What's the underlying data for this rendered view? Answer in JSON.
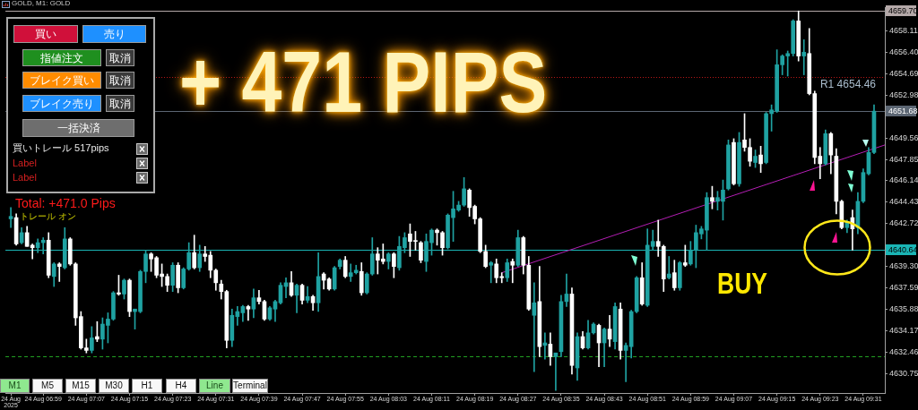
{
  "chart_data": [
    {
      "type": "candlestick",
      "title": "GOLD, M1: GOLD",
      "x": [
        "2025-08-24T06:53",
        "2025-08-24T06:54",
        "2025-08-24T06:55",
        "2025-08-24T06:56",
        "2025-08-24T06:57",
        "2025-08-24T06:58",
        "2025-08-24T06:59",
        "2025-08-24T07:00",
        "2025-08-24T07:01",
        "2025-08-24T07:02",
        "2025-08-24T07:03",
        "2025-08-24T07:04",
        "2025-08-24T07:05",
        "2025-08-24T07:06",
        "2025-08-24T07:07",
        "2025-08-24T07:08",
        "2025-08-24T07:09",
        "2025-08-24T07:10",
        "2025-08-24T07:11",
        "2025-08-24T07:12",
        "2025-08-24T07:13",
        "2025-08-24T07:14",
        "2025-08-24T07:15",
        "2025-08-24T07:16",
        "2025-08-24T07:17",
        "2025-08-24T07:18",
        "2025-08-24T07:19",
        "2025-08-24T07:20",
        "2025-08-24T07:21",
        "2025-08-24T07:22",
        "2025-08-24T07:23",
        "2025-08-24T07:24",
        "2025-08-24T07:25",
        "2025-08-24T07:26",
        "2025-08-24T07:27",
        "2025-08-24T07:28",
        "2025-08-24T07:29",
        "2025-08-24T07:30",
        "2025-08-24T07:31",
        "2025-08-24T07:32",
        "2025-08-24T07:33",
        "2025-08-24T07:34",
        "2025-08-24T07:35",
        "2025-08-24T07:36",
        "2025-08-24T07:37",
        "2025-08-24T07:38",
        "2025-08-24T07:39",
        "2025-08-24T07:40",
        "2025-08-24T07:41",
        "2025-08-24T07:42",
        "2025-08-24T07:43",
        "2025-08-24T07:44",
        "2025-08-24T07:45",
        "2025-08-24T07:46",
        "2025-08-24T07:47",
        "2025-08-24T07:48",
        "2025-08-24T07:49",
        "2025-08-24T07:50",
        "2025-08-24T07:51",
        "2025-08-24T07:52",
        "2025-08-24T07:53",
        "2025-08-24T07:54",
        "2025-08-24T07:55",
        "2025-08-24T07:56",
        "2025-08-24T07:57",
        "2025-08-24T07:58",
        "2025-08-24T07:59",
        "2025-08-24T08:00",
        "2025-08-24T08:01",
        "2025-08-24T08:02",
        "2025-08-24T08:03",
        "2025-08-24T08:04",
        "2025-08-24T08:05",
        "2025-08-24T08:06",
        "2025-08-24T08:07",
        "2025-08-24T08:08",
        "2025-08-24T08:09",
        "2025-08-24T08:10",
        "2025-08-24T08:11",
        "2025-08-24T08:12",
        "2025-08-24T08:13",
        "2025-08-24T08:14",
        "2025-08-24T08:15",
        "2025-08-24T08:16",
        "2025-08-24T08:17",
        "2025-08-24T08:18",
        "2025-08-24T08:19",
        "2025-08-24T08:20",
        "2025-08-24T08:21",
        "2025-08-24T08:22",
        "2025-08-24T08:23",
        "2025-08-24T08:24",
        "2025-08-24T08:25",
        "2025-08-24T08:26",
        "2025-08-24T08:27",
        "2025-08-24T08:28",
        "2025-08-24T08:29",
        "2025-08-24T08:30",
        "2025-08-24T08:31",
        "2025-08-24T08:32",
        "2025-08-24T08:33",
        "2025-08-24T08:34",
        "2025-08-24T08:35",
        "2025-08-24T08:36",
        "2025-08-24T08:37",
        "2025-08-24T08:38",
        "2025-08-24T08:39",
        "2025-08-24T08:40",
        "2025-08-24T08:41",
        "2025-08-24T08:42",
        "2025-08-24T08:43",
        "2025-08-24T08:44",
        "2025-08-24T08:45",
        "2025-08-24T08:46",
        "2025-08-24T08:47",
        "2025-08-24T08:48",
        "2025-08-24T08:49",
        "2025-08-24T08:50",
        "2025-08-24T08:51",
        "2025-08-24T08:52",
        "2025-08-24T08:53",
        "2025-08-24T08:54",
        "2025-08-24T08:55",
        "2025-08-24T08:56",
        "2025-08-24T08:57",
        "2025-08-24T08:58",
        "2025-08-24T08:59",
        "2025-08-24T09:00",
        "2025-08-24T09:01",
        "2025-08-24T09:02",
        "2025-08-24T09:03",
        "2025-08-24T09:04",
        "2025-08-24T09:05",
        "2025-08-24T09:06",
        "2025-08-24T09:07",
        "2025-08-24T09:08",
        "2025-08-24T09:09",
        "2025-08-24T09:10",
        "2025-08-24T09:11",
        "2025-08-24T09:12",
        "2025-08-24T09:13",
        "2025-08-24T09:14",
        "2025-08-24T09:15",
        "2025-08-24T09:16",
        "2025-08-24T09:17",
        "2025-08-24T09:18",
        "2025-08-24T09:19",
        "2025-08-24T09:20",
        "2025-08-24T09:21",
        "2025-08-24T09:22",
        "2025-08-24T09:23",
        "2025-08-24T09:24",
        "2025-08-24T09:25",
        "2025-08-24T09:26",
        "2025-08-24T09:27",
        "2025-08-24T09:28",
        "2025-08-24T09:29",
        "2025-08-24T09:30",
        "2025-08-24T09:31",
        "2025-08-24T09:32",
        "2025-08-24T09:33"
      ],
      "ohlc": [
        [
          4643.1,
          4644.0,
          4642.4,
          4643.3
        ],
        [
          4643.2,
          4643.5,
          4641.0,
          4641.1
        ],
        [
          4641.2,
          4642.4,
          4641.1,
          4642.0
        ],
        [
          4642.0,
          4642.5,
          4640.9,
          4640.9
        ],
        [
          4641.0,
          4641.1,
          4639.9,
          4640.8
        ],
        [
          4640.8,
          4641.5,
          4640.4,
          4641.2
        ],
        [
          4641.2,
          4641.6,
          4640.3,
          4641.4
        ],
        [
          4641.4,
          4642.0,
          4638.4,
          4638.6
        ],
        [
          4638.5,
          4639.6,
          4637.7,
          4639.5
        ],
        [
          4639.5,
          4639.6,
          4638.1,
          4639.3
        ],
        [
          4639.2,
          4642.4,
          4639.1,
          4641.5
        ],
        [
          4641.5,
          4641.6,
          4639.4,
          4639.5
        ],
        [
          4639.5,
          4639.6,
          4634.6,
          4635.2
        ],
        [
          4635.3,
          4635.7,
          4632.7,
          4632.8
        ],
        [
          4632.8,
          4633.5,
          4632.4,
          4632.6
        ],
        [
          4632.6,
          4634.5,
          4632.4,
          4633.6
        ],
        [
          4633.7,
          4634.9,
          4633.3,
          4633.5
        ],
        [
          4633.5,
          4635.2,
          4632.7,
          4634.7
        ],
        [
          4634.6,
          4635.6,
          4633.2,
          4635.1
        ],
        [
          4635.1,
          4637.3,
          4635.0,
          4637.2
        ],
        [
          4637.2,
          4638.6,
          4637.0,
          4637.1
        ],
        [
          4637.1,
          4638.3,
          4636.7,
          4638.2
        ],
        [
          4638.2,
          4638.3,
          4635.3,
          4635.7
        ],
        [
          4635.7,
          4635.9,
          4634.3,
          4635.9
        ],
        [
          4635.7,
          4639.0,
          4635.6,
          4638.9
        ],
        [
          4638.9,
          4640.6,
          4638.0,
          4640.3
        ],
        [
          4640.3,
          4640.4,
          4638.9,
          4639.9
        ],
        [
          4640.0,
          4640.1,
          4638.4,
          4638.6
        ],
        [
          4638.7,
          4639.5,
          4637.7,
          4638.5
        ],
        [
          4638.5,
          4638.7,
          4637.3,
          4637.8
        ],
        [
          4637.8,
          4639.6,
          4637.3,
          4639.4
        ],
        [
          4639.4,
          4639.6,
          4637.2,
          4637.6
        ],
        [
          4637.6,
          4639.2,
          4637.5,
          4639.1
        ],
        [
          4639.1,
          4641.2,
          4639.0,
          4640.4
        ],
        [
          4640.4,
          4641.8,
          4639.1,
          4639.2
        ],
        [
          4639.2,
          4641.0,
          4638.9,
          4640.3
        ],
        [
          4640.3,
          4640.9,
          4639.7,
          4640.1
        ],
        [
          4640.2,
          4640.5,
          4638.4,
          4639.0
        ],
        [
          4639.0,
          4639.1,
          4637.4,
          4638.0
        ],
        [
          4637.9,
          4638.2,
          4636.7,
          4637.3
        ],
        [
          4637.3,
          4637.4,
          4632.8,
          4633.4
        ],
        [
          4633.4,
          4635.9,
          4632.9,
          4635.4
        ],
        [
          4635.3,
          4636.1,
          4634.6,
          4635.7
        ],
        [
          4635.6,
          4636.2,
          4634.9,
          4636.1
        ],
        [
          4636.1,
          4636.2,
          4635.0,
          4635.9
        ],
        [
          4635.9,
          4637.5,
          4635.2,
          4636.8
        ],
        [
          4636.8,
          4637.4,
          4636.3,
          4636.5
        ],
        [
          4636.5,
          4636.6,
          4635.0,
          4635.1
        ],
        [
          4635.1,
          4636.1,
          4635.0,
          4636.0
        ],
        [
          4635.9,
          4636.6,
          4634.9,
          4636.5
        ],
        [
          4636.4,
          4638.0,
          4636.3,
          4637.8
        ],
        [
          4637.7,
          4638.4,
          4636.8,
          4638.0
        ],
        [
          4638.0,
          4638.9,
          4636.9,
          4637.0
        ],
        [
          4637.0,
          4637.9,
          4635.6,
          4637.8
        ],
        [
          4637.8,
          4637.9,
          4636.3,
          4636.6
        ],
        [
          4636.6,
          4637.7,
          4636.4,
          4636.9
        ],
        [
          4636.9,
          4637.0,
          4635.8,
          4636.4
        ],
        [
          4636.4,
          4640.4,
          4635.7,
          4638.5
        ],
        [
          4638.7,
          4638.8,
          4637.5,
          4638.2
        ],
        [
          4638.3,
          4638.4,
          4637.4,
          4637.5
        ],
        [
          4637.5,
          4639.3,
          4637.4,
          4639.2
        ],
        [
          4639.3,
          4639.9,
          4639.1,
          4639.8
        ],
        [
          4639.8,
          4640.1,
          4638.4,
          4638.5
        ],
        [
          4638.5,
          4639.5,
          4638.1,
          4638.8
        ],
        [
          4638.8,
          4639.4,
          4638.7,
          4639.0
        ],
        [
          4638.9,
          4639.6,
          4637.0,
          4637.2
        ],
        [
          4637.2,
          4638.8,
          4637.1,
          4638.7
        ],
        [
          4638.7,
          4641.6,
          4638.6,
          4640.3
        ],
        [
          4640.3,
          4640.8,
          4638.7,
          4639.8
        ],
        [
          4639.9,
          4641.1,
          4639.5,
          4639.7
        ],
        [
          4639.7,
          4640.4,
          4639.1,
          4640.3
        ],
        [
          4640.3,
          4640.4,
          4638.4,
          4639.3
        ],
        [
          4639.2,
          4641.7,
          4639.0,
          4640.9
        ],
        [
          4640.8,
          4642.0,
          4640.4,
          4641.6
        ],
        [
          4641.9,
          4642.7,
          4640.1,
          4641.3
        ],
        [
          4641.3,
          4642.1,
          4640.6,
          4641.3
        ],
        [
          4641.2,
          4641.3,
          4639.6,
          4639.8
        ],
        [
          4639.7,
          4641.9,
          4638.9,
          4641.3
        ],
        [
          4641.2,
          4642.3,
          4640.2,
          4642.2
        ],
        [
          4642.2,
          4642.3,
          4641.0,
          4642.0
        ],
        [
          4642.0,
          4642.1,
          4640.2,
          4640.8
        ],
        [
          4640.8,
          4643.5,
          4640.7,
          4643.4
        ],
        [
          4643.2,
          4645.3,
          4641.3,
          4643.9
        ],
        [
          4643.8,
          4644.5,
          4643.7,
          4644.2
        ],
        [
          4644.2,
          4646.4,
          4644.1,
          4645.5
        ],
        [
          4645.4,
          4645.5,
          4643.3,
          4644.0
        ],
        [
          4644.1,
          4644.2,
          4642.7,
          4643.1
        ],
        [
          4643.1,
          4643.2,
          4640.4,
          4640.5
        ],
        [
          4640.5,
          4641.0,
          4639.2,
          4639.3
        ],
        [
          4639.4,
          4639.7,
          4638.0,
          4639.6
        ],
        [
          4639.5,
          4639.9,
          4638.0,
          4638.4
        ],
        [
          4638.5,
          4638.8,
          4638.0,
          4638.4
        ],
        [
          4638.4,
          4639.9,
          4638.1,
          4639.6
        ],
        [
          4639.7,
          4639.9,
          4638.0,
          4639.4
        ],
        [
          4639.4,
          4642.2,
          4639.3,
          4641.6
        ],
        [
          4641.6,
          4641.7,
          4638.7,
          4639.4
        ],
        [
          4639.4,
          4640.1,
          4635.8,
          4635.9
        ],
        [
          4635.4,
          4638.0,
          4630.9,
          4636.4
        ],
        [
          4636.5,
          4639.3,
          4632.1,
          4632.9
        ],
        [
          4633.0,
          4634.0,
          4631.9,
          4633.2
        ],
        [
          4633.1,
          4634.0,
          4631.4,
          4632.1
        ],
        [
          4632.1,
          4632.4,
          4629.4,
          4632.4
        ],
        [
          4632.5,
          4637.0,
          4632.1,
          4636.5
        ],
        [
          4636.5,
          4638.7,
          4636.1,
          4637.1
        ],
        [
          4637.1,
          4637.6,
          4630.7,
          4631.4
        ],
        [
          4631.2,
          4634.0,
          4630.2,
          4633.7
        ],
        [
          4633.7,
          4634.1,
          4632.7,
          4632.8
        ],
        [
          4632.8,
          4635.0,
          4632.7,
          4634.0
        ],
        [
          4634.0,
          4634.8,
          4633.9,
          4634.7
        ],
        [
          4634.6,
          4634.7,
          4631.3,
          4633.2
        ],
        [
          4633.2,
          4634.4,
          4631.3,
          4634.3
        ],
        [
          4634.3,
          4635.4,
          4632.9,
          4633.5
        ],
        [
          4633.3,
          4636.4,
          4632.7,
          4636.1
        ],
        [
          4635.9,
          4636.4,
          4631.9,
          4632.6
        ],
        [
          4632.6,
          4633.2,
          4630.1,
          4633.0
        ],
        [
          4632.9,
          4635.8,
          4632.0,
          4635.7
        ],
        [
          4635.7,
          4638.5,
          4635.6,
          4638.4
        ],
        [
          4638.4,
          4639.6,
          4636.2,
          4636.3
        ],
        [
          4636.2,
          4642.3,
          4636.1,
          4641.0
        ],
        [
          4640.9,
          4642.2,
          4640.6,
          4641.3
        ],
        [
          4641.3,
          4643.0,
          4640.1,
          4640.9
        ],
        [
          4640.9,
          4641.0,
          4637.3,
          4638.3
        ],
        [
          4638.4,
          4640.1,
          4638.3,
          4638.7
        ],
        [
          4638.8,
          4639.8,
          4637.4,
          4637.6
        ],
        [
          4637.6,
          4639.7,
          4637.4,
          4639.6
        ],
        [
          4639.6,
          4641.0,
          4639.3,
          4639.4
        ],
        [
          4639.5,
          4641.3,
          4639.4,
          4640.6
        ],
        [
          4640.6,
          4642.6,
          4639.2,
          4642.0
        ],
        [
          4641.9,
          4642.5,
          4641.5,
          4642.3
        ],
        [
          4642.2,
          4645.2,
          4640.6,
          4644.8
        ],
        [
          4644.8,
          4645.7,
          4643.9,
          4644.5
        ],
        [
          4644.5,
          4645.3,
          4643.8,
          4644.8
        ],
        [
          4644.5,
          4646.2,
          4643.0,
          4645.4
        ],
        [
          4645.5,
          4649.4,
          4645.4,
          4649.0
        ],
        [
          4649.2,
          4649.5,
          4645.8,
          4645.9
        ],
        [
          4645.9,
          4650.0,
          4645.7,
          4649.2
        ],
        [
          4649.4,
          4651.5,
          4648.5,
          4648.8
        ],
        [
          4648.8,
          4649.5,
          4647.3,
          4647.7
        ],
        [
          4647.6,
          4648.6,
          4647.2,
          4648.1
        ],
        [
          4648.2,
          4648.9,
          4646.8,
          4647.5
        ],
        [
          4647.6,
          4651.6,
          4647.5,
          4651.5
        ],
        [
          4651.5,
          4652.2,
          4650.1,
          4651.8
        ],
        [
          4651.7,
          4656.6,
          4651.6,
          4655.4
        ],
        [
          4655.4,
          4656.2,
          4654.6,
          4656.1
        ],
        [
          4656.1,
          4656.5,
          4654.5,
          4656.3
        ],
        [
          4656.3,
          4659.0,
          4656.1,
          4658.9
        ],
        [
          4658.9,
          4659.7,
          4655.7,
          4656.1
        ],
        [
          4656.1,
          4657.4,
          4654.6,
          4656.4
        ],
        [
          4656.3,
          4658.3,
          4653.0,
          4653.1
        ],
        [
          4653.1,
          4653.3,
          4647.5,
          4648.0
        ],
        [
          4648.1,
          4648.8,
          4646.3,
          4647.5
        ],
        [
          4647.5,
          4650.2,
          4647.4,
          4649.9
        ],
        [
          4649.9,
          4650.0,
          4646.7,
          4648.2
        ],
        [
          4648.1,
          4648.7,
          4643.5,
          4644.5
        ],
        [
          4644.5,
          4644.6,
          4642.3,
          4642.4
        ],
        [
          4642.4,
          4643.0,
          4642.0,
          4642.9
        ],
        [
          4643.2,
          4643.8,
          4640.6,
          4642.3
        ],
        [
          4642.4,
          4645.2,
          4641.9,
          4644.5
        ],
        [
          4644.5,
          4647.1,
          4644.4,
          4646.8
        ],
        [
          4646.7,
          4648.8,
          4646.6,
          4648.4
        ],
        [
          4648.4,
          4652.2,
          4648.3,
          4651.7
        ]
      ],
      "colors": [
        "#1fa2a2",
        "#ffffff",
        "#1fa2a2",
        "#ffffff",
        "#ffffff",
        "#1fa2a2",
        "#1fa2a2",
        "#ffffff",
        "#1fa2a2",
        "#ffffff",
        "#1fa2a2",
        "#ffffff",
        "#ffffff",
        "#ffffff",
        "#ffffff",
        "#1fa2a2",
        "#ffffff",
        "#1fa2a2",
        "#1fa2a2",
        "#1fa2a2",
        "#ffffff",
        "#1fa2a2",
        "#ffffff",
        "#1fa2a2",
        "#1fa2a2",
        "#1fa2a2",
        "#ffffff",
        "#ffffff",
        "#ffffff",
        "#ffffff",
        "#1fa2a2",
        "#ffffff",
        "#1fa2a2",
        "#1fa2a2",
        "#ffffff",
        "#1fa2a2",
        "#ffffff",
        "#ffffff",
        "#ffffff",
        "#ffffff",
        "#ffffff",
        "#1fa2a2",
        "#1fa2a2",
        "#1fa2a2",
        "#ffffff",
        "#1fa2a2",
        "#ffffff",
        "#ffffff",
        "#1fa2a2",
        "#1fa2a2",
        "#1fa2a2",
        "#1fa2a2",
        "#ffffff",
        "#1fa2a2",
        "#ffffff",
        "#1fa2a2",
        "#ffffff",
        "#1fa2a2",
        "#ffffff",
        "#ffffff",
        "#1fa2a2",
        "#1fa2a2",
        "#ffffff",
        "#1fa2a2",
        "#1fa2a2",
        "#ffffff",
        "#1fa2a2",
        "#1fa2a2",
        "#ffffff",
        "#ffffff",
        "#1fa2a2",
        "#ffffff",
        "#1fa2a2",
        "#1fa2a2",
        "#ffffff",
        "#ffffff",
        "#ffffff",
        "#1fa2a2",
        "#1fa2a2",
        "#ffffff",
        "#ffffff",
        "#1fa2a2",
        "#1fa2a2",
        "#1fa2a2",
        "#1fa2a2",
        "#ffffff",
        "#ffffff",
        "#ffffff",
        "#ffffff",
        "#1fa2a2",
        "#ffffff",
        "#ffffff",
        "#1fa2a2",
        "#ffffff",
        "#1fa2a2",
        "#ffffff",
        "#ffffff",
        "#1fa2a2",
        "#ffffff",
        "#1fa2a2",
        "#ffffff",
        "#1fa2a2",
        "#1fa2a2",
        "#1fa2a2",
        "#ffffff",
        "#1fa2a2",
        "#ffffff",
        "#1fa2a2",
        "#1fa2a2",
        "#ffffff",
        "#1fa2a2",
        "#ffffff",
        "#1fa2a2",
        "#ffffff",
        "#1fa2a2",
        "#1fa2a2",
        "#1fa2a2",
        "#ffffff",
        "#1fa2a2",
        "#1fa2a2",
        "#ffffff",
        "#ffffff",
        "#1fa2a2",
        "#ffffff",
        "#1fa2a2",
        "#ffffff",
        "#1fa2a2",
        "#1fa2a2",
        "#1fa2a2",
        "#1fa2a2",
        "#ffffff",
        "#1fa2a2",
        "#1fa2a2",
        "#1fa2a2",
        "#ffffff",
        "#1fa2a2",
        "#ffffff",
        "#ffffff",
        "#1fa2a2",
        "#ffffff",
        "#1fa2a2",
        "#1fa2a2",
        "#1fa2a2",
        "#1fa2a2",
        "#1fa2a2",
        "#1fa2a2",
        "#ffffff",
        "#1fa2a2",
        "#ffffff",
        "#ffffff",
        "#ffffff",
        "#1fa2a2",
        "#ffffff",
        "#ffffff",
        "#ffffff",
        "#1fa2a2",
        "#ffffff",
        "#1fa2a2",
        "#1fa2a2",
        "#1fa2a2",
        "#1fa2a2"
      ],
      "series": [
        {
          "type": "line",
          "x": [
            "2025-08-24T08:24",
            "2025-08-24T09:35"
          ],
          "values": [
            4638.8,
            4649.0
          ],
          "color": "#b41eb4"
        }
      ],
      "xlim": [
        "2025-08-24T06:52",
        "2025-08-24T09:35"
      ],
      "xticks": [
        {
          "value": "2025-08-24T06:53",
          "label": "24 Aug 2025"
        },
        {
          "value": "2025-08-24T06:59",
          "label": "24 Aug 06:59"
        },
        {
          "value": "2025-08-24T07:07",
          "label": "24 Aug 07:07"
        },
        {
          "value": "2025-08-24T07:15",
          "label": "24 Aug 07:15"
        },
        {
          "value": "2025-08-24T07:23",
          "label": "24 Aug 07:23"
        },
        {
          "value": "2025-08-24T07:31",
          "label": "24 Aug 07:31"
        },
        {
          "value": "2025-08-24T07:39",
          "label": "24 Aug 07:39"
        },
        {
          "value": "2025-08-24T07:47",
          "label": "24 Aug 07:47"
        },
        {
          "value": "2025-08-24T07:55",
          "label": "24 Aug 07:55"
        },
        {
          "value": "2025-08-24T08:03",
          "label": "24 Aug 08:03"
        },
        {
          "value": "2025-08-24T08:11",
          "label": "24 Aug 08:11"
        },
        {
          "value": "2025-08-24T08:19",
          "label": "24 Aug 08:19"
        },
        {
          "value": "2025-08-24T08:27",
          "label": "24 Aug 08:27"
        },
        {
          "value": "2025-08-24T08:35",
          "label": "24 Aug 08:35"
        },
        {
          "value": "2025-08-24T08:43",
          "label": "24 Aug 08:43"
        },
        {
          "value": "2025-08-24T08:51",
          "label": "24 Aug 08:51"
        },
        {
          "value": "2025-08-24T08:59",
          "label": "24 Aug 08:59"
        },
        {
          "value": "2025-08-24T09:07",
          "label": "24 Aug 09:07"
        },
        {
          "value": "2025-08-24T09:15",
          "label": "24 Aug 09:15"
        },
        {
          "value": "2025-08-24T09:23",
          "label": "24 Aug 09:23"
        },
        {
          "value": "2025-08-24T09:31",
          "label": "24 Aug 09:31"
        }
      ],
      "ylim": [
        4629.2,
        4660.0
      ],
      "yticks": [
        4658.11,
        {
          "value": 4656.4,
          "label": "4656.40"
        },
        4654.69,
        4652.98,
        4649.56,
        4647.85,
        4646.14,
        4644.43,
        4642.72,
        {
          "value": 4639.3,
          "label": "4639.30"
        },
        4637.59,
        4635.88,
        4634.17,
        4632.46,
        4630.75
      ],
      "ref_lines": [
        {
          "axis": "y",
          "value": 4659.7,
          "label": "4659.70",
          "color": "#b4a8a8"
        },
        {
          "axis": "y",
          "value": 4651.68,
          "label": "4651.68",
          "color": "#5c6673"
        },
        {
          "axis": "y",
          "value": 4640.64,
          "label": "4640.64",
          "color": "#1ab4b4"
        },
        {
          "axis": "y",
          "value": 4654.46,
          "label": "R1 4654.46",
          "color": "#c01818",
          "line_style": "dotted"
        },
        {
          "axis": "y",
          "value": 4632.1,
          "color": "#22a022",
          "line_style": "dashed"
        }
      ],
      "annotations": [
        "+ 471 PIPS",
        "BUY",
        "Total: +471.0 Pips",
        "トレール オン"
      ]
    },
    {
      "type": "other",
      "annotations": [
        "買い",
        "売り",
        "指値注文",
        "取消",
        "ブレイク買い",
        "取消",
        "ブレイク売り",
        "取消",
        "一括決済",
        "買いトレール 517pips",
        "Label",
        "Label"
      ]
    },
    {
      "type": "other",
      "annotations": [
        "M1",
        "M5",
        "M15",
        "M30",
        "H1",
        "H4",
        "Line",
        "Terminal"
      ]
    }
  ]
}
